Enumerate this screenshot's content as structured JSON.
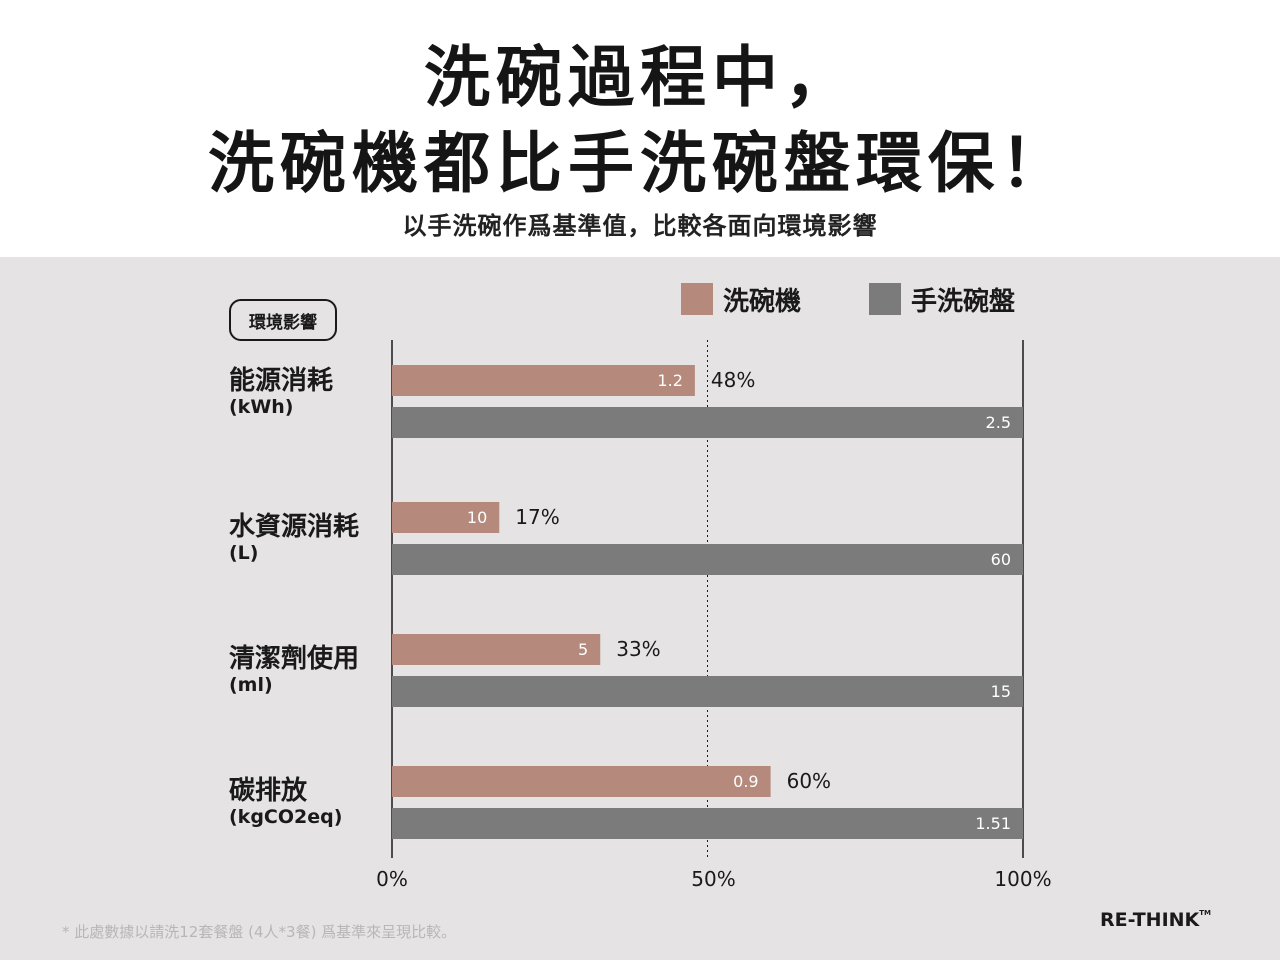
{
  "title": {
    "line1": "洗碗過程中，",
    "line2": "洗碗機都比手洗碗盤環保！"
  },
  "subtitle": "以手洗碗作爲基準值，比較各面向環境影響",
  "colors": {
    "dishwasher": "#b5897b",
    "handwash": "#7b7b7b",
    "panel_bg": "#e5e3e3"
  },
  "legend": {
    "dishwasher": "洗碗機",
    "handwash": "手洗碗盤"
  },
  "category_header": "環境影響",
  "footnote": "* 此處數據以請洗12套餐盤 (4人*3餐) 爲基準來呈現比較。",
  "brand": {
    "name": "RE-THINK",
    "tm": "TM"
  },
  "chart_data": {
    "type": "bar",
    "orientation": "horizontal",
    "categories": [
      {
        "name": "能源消耗",
        "unit": "(kWh)"
      },
      {
        "name": "水資源消耗",
        "unit": "(L)"
      },
      {
        "name": "清潔劑使用",
        "unit": "(ml)"
      },
      {
        "name": "碳排放",
        "unit": "(kgCO2eq)"
      }
    ],
    "series": [
      {
        "name": "洗碗機",
        "values": [
          1.2,
          10,
          5,
          0.9
        ],
        "value_labels": [
          "1.2",
          "10",
          "5",
          "0.9"
        ],
        "percent_of_handwash": [
          48,
          17,
          33,
          60
        ],
        "percent_labels": [
          "48%",
          "17%",
          "33%",
          "60%"
        ]
      },
      {
        "name": "手洗碗盤",
        "values": [
          2.5,
          60,
          15,
          1.51
        ],
        "value_labels": [
          "2.5",
          "60",
          "15",
          "1.51"
        ],
        "percent_of_handwash": [
          100,
          100,
          100,
          100
        ]
      }
    ],
    "x_axis": {
      "min": 0,
      "max": 100,
      "ticks": [
        0,
        50,
        100
      ],
      "tick_labels": [
        "0%",
        "50%",
        "100%"
      ],
      "reference_line": 50
    },
    "grid": false,
    "legend_position": "top-right"
  }
}
